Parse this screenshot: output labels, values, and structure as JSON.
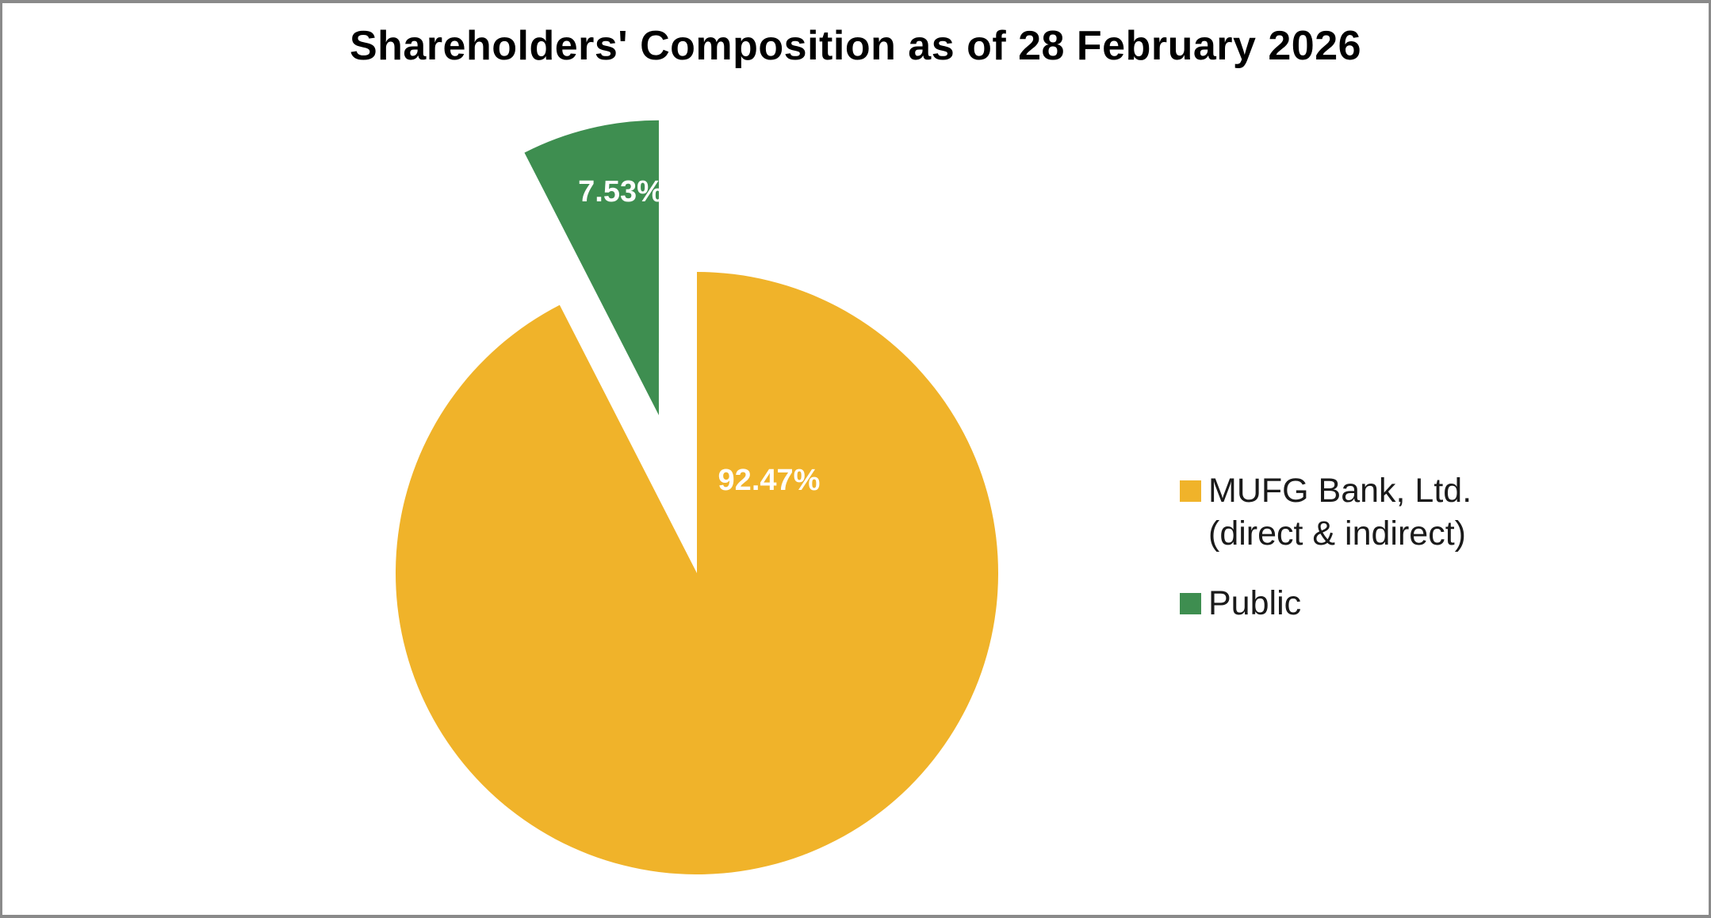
{
  "frame": {
    "border_color": "#8a8a8a",
    "background": "#ffffff"
  },
  "chart_data": {
    "type": "pie",
    "title": "Shareholders' Composition as of 28 February 2026",
    "start_angle_deg": 0,
    "direction": "clockwise",
    "legend_position": "right",
    "data_labels": "percent",
    "data_label_color": "#ffffff",
    "slices": [
      {
        "label": "MUFG Bank, Ltd.\n(direct & indirect)",
        "value": 92.47,
        "display": "92.47%",
        "color": "#F0B32A",
        "exploded": false
      },
      {
        "label": "Public",
        "value": 7.53,
        "display": "7.53%",
        "color": "#3E8E50",
        "exploded": true
      }
    ]
  }
}
